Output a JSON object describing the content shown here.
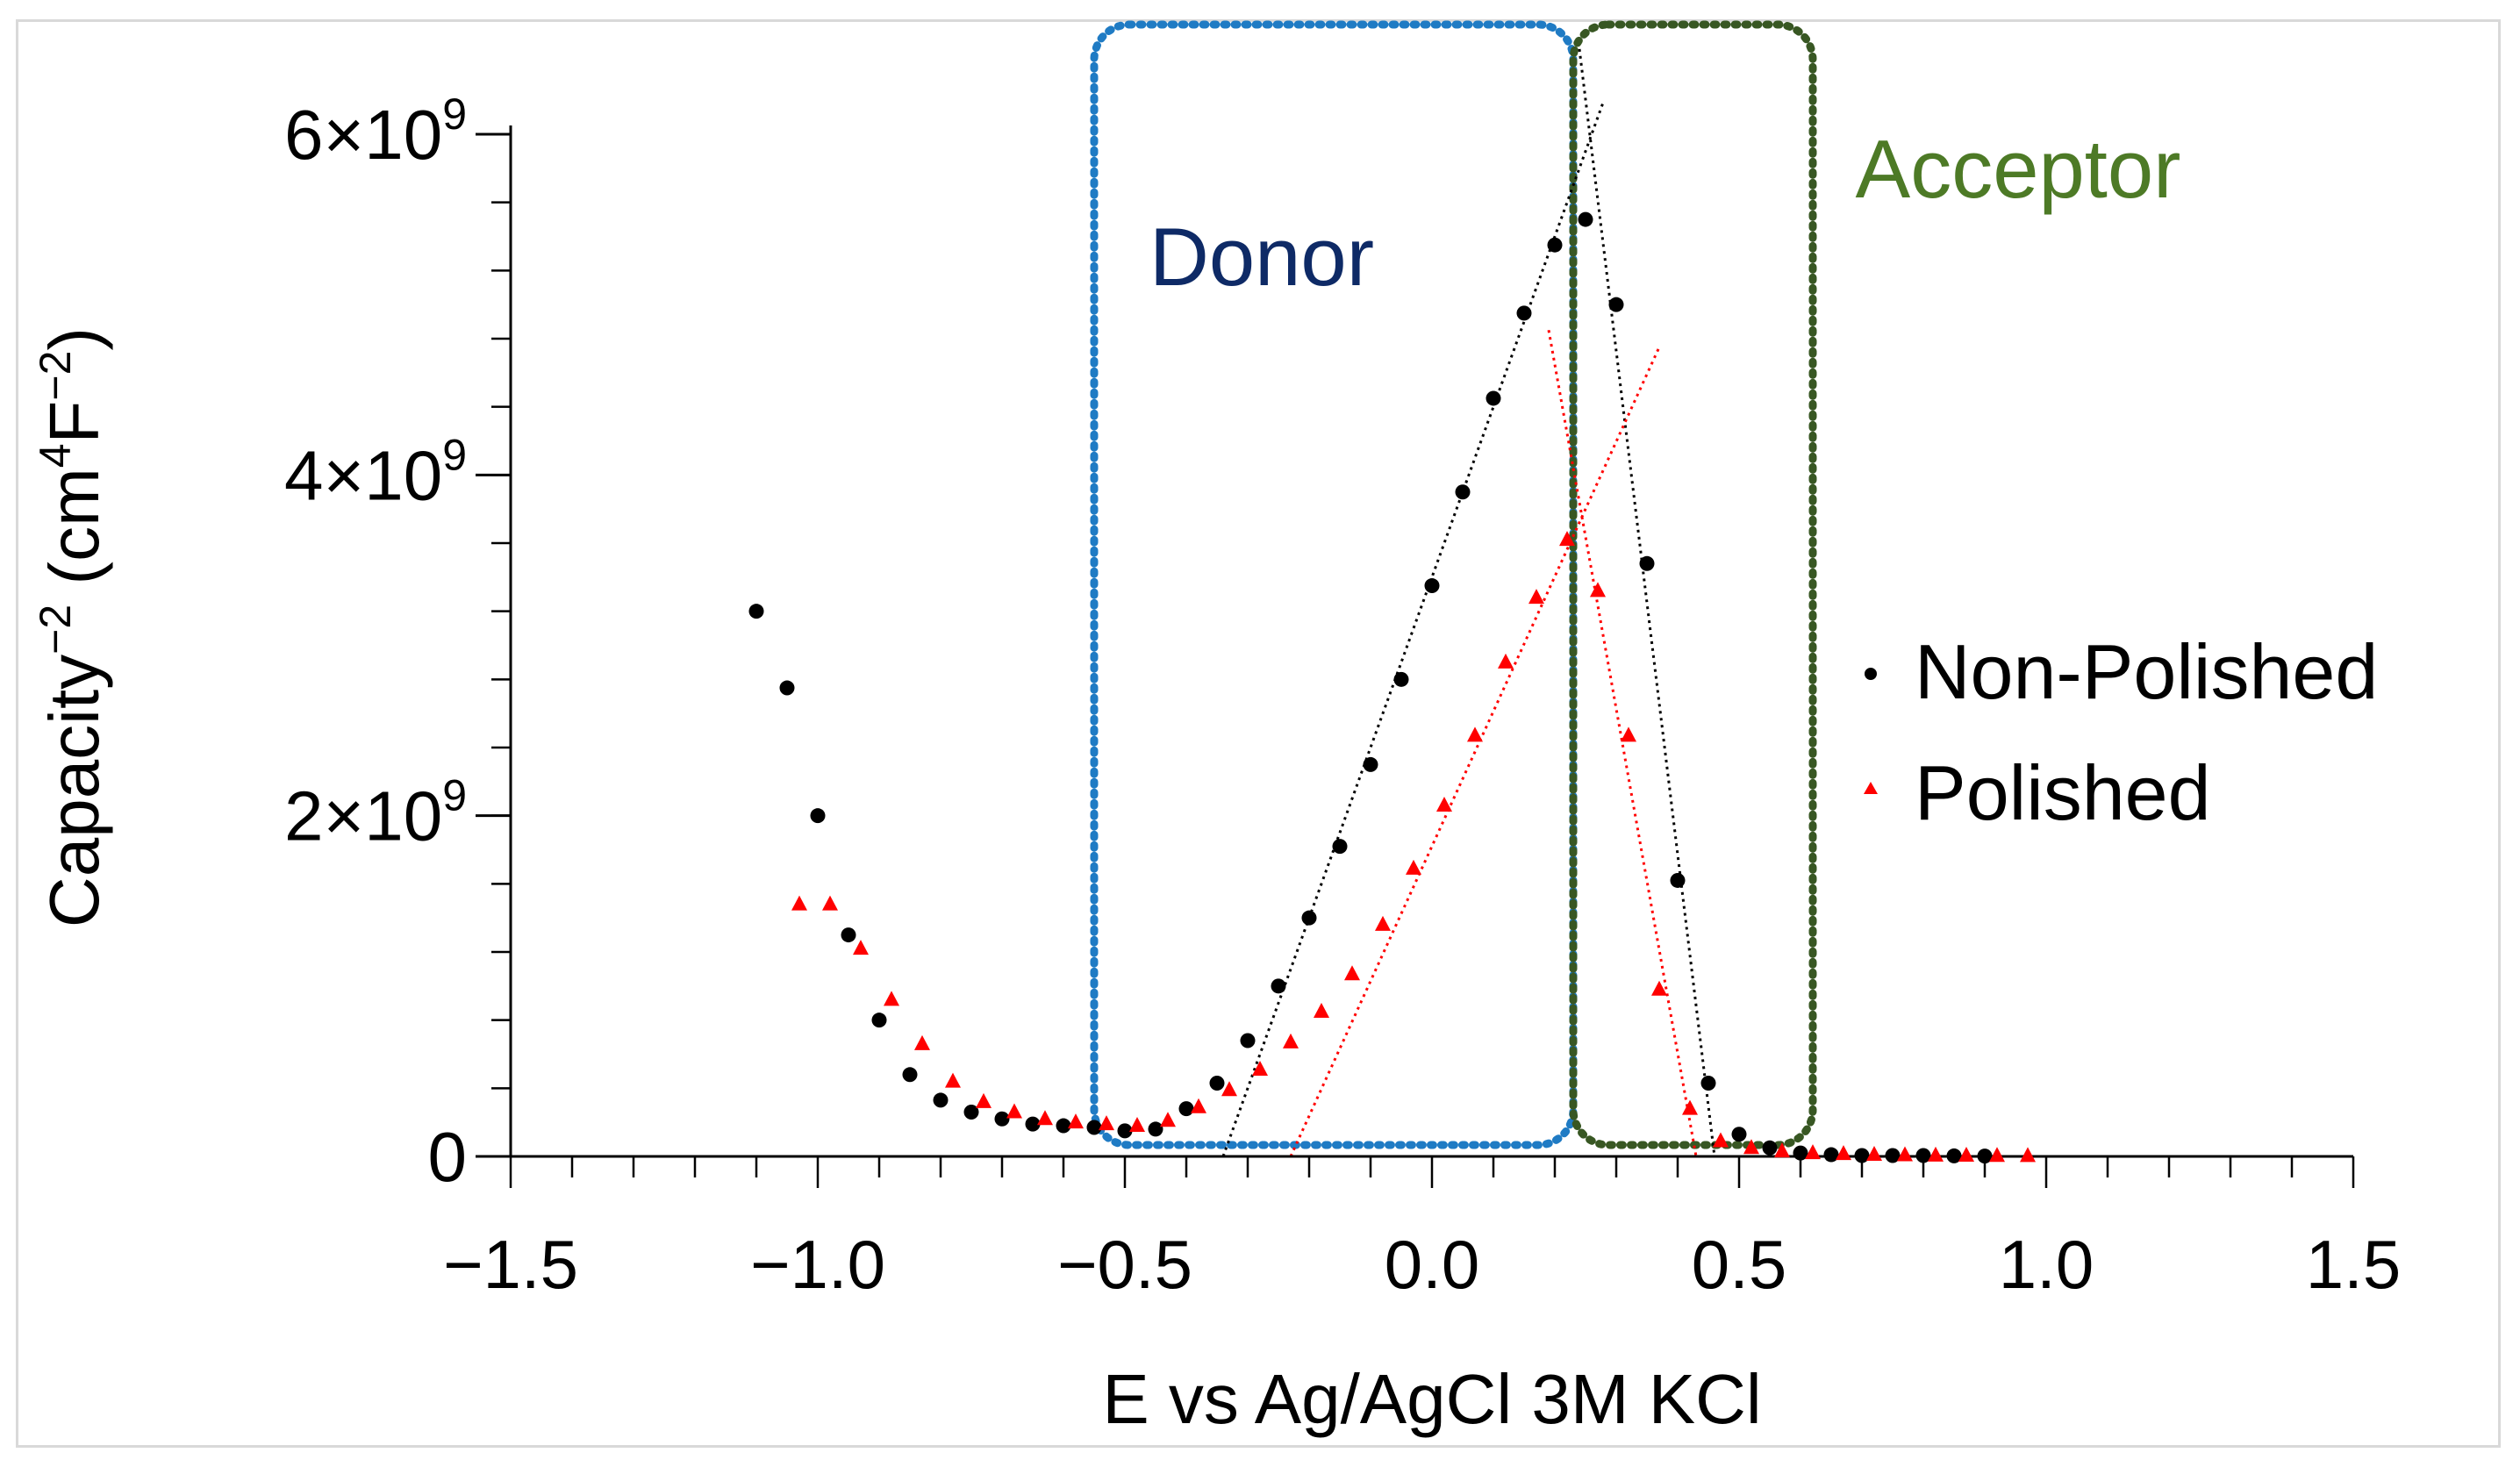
{
  "chart_data": {
    "type": "scatter",
    "title": "",
    "xlabel": "E vs Ag/AgCl 3M KCl",
    "ylabel_main": "Capacity",
    "ylabel_sup": "−2",
    "ylabel_unit_open": " (cm",
    "ylabel_unit_sup1": "4",
    "ylabel_unit_mid": "F",
    "ylabel_unit_sup2": "−2",
    "ylabel_unit_close": ")",
    "xlim": [
      -1.5,
      1.5
    ],
    "ylim": [
      0,
      6000000000
    ],
    "x_ticks": [
      {
        "value": -1.5,
        "label": "−1.5"
      },
      {
        "value": -1.0,
        "label": "−1.0"
      },
      {
        "value": -0.5,
        "label": "−0.5"
      },
      {
        "value": 0.0,
        "label": "0.0"
      },
      {
        "value": 0.5,
        "label": "0.5"
      },
      {
        "value": 1.0,
        "label": "1.0"
      },
      {
        "value": 1.5,
        "label": "1.5"
      }
    ],
    "x_minor_step": 0.1,
    "y_ticks": [
      {
        "value": 0,
        "label": "0",
        "base": "0",
        "exp": ""
      },
      {
        "value": 2000000000,
        "label": "2×10⁹",
        "base": "2×10",
        "exp": "9"
      },
      {
        "value": 4000000000,
        "label": "4×10⁹",
        "base": "4×10",
        "exp": "9"
      },
      {
        "value": 6000000000,
        "label": "6×10⁹",
        "base": "6×10",
        "exp": "9"
      }
    ],
    "y_minor_step": 400000000,
    "series": [
      {
        "name": "Non-Polished",
        "marker": "circle",
        "color": "#000000",
        "points": [
          [
            -1.1,
            3200000000
          ],
          [
            -1.05,
            2750000000
          ],
          [
            -1.0,
            2000000000
          ],
          [
            -0.95,
            1300000000
          ],
          [
            -0.9,
            800000000
          ],
          [
            -0.85,
            480000000
          ],
          [
            -0.8,
            330000000
          ],
          [
            -0.75,
            260000000
          ],
          [
            -0.7,
            220000000
          ],
          [
            -0.65,
            190000000
          ],
          [
            -0.6,
            180000000
          ],
          [
            -0.55,
            170000000
          ],
          [
            -0.5,
            150000000
          ],
          [
            -0.45,
            160000000
          ],
          [
            -0.4,
            280000000
          ],
          [
            -0.35,
            430000000
          ],
          [
            -0.3,
            680000000
          ],
          [
            -0.25,
            1000000000
          ],
          [
            -0.2,
            1400000000
          ],
          [
            -0.15,
            1820000000
          ],
          [
            -0.1,
            2300000000
          ],
          [
            -0.05,
            2800000000
          ],
          [
            0.0,
            3350000000
          ],
          [
            0.05,
            3900000000
          ],
          [
            0.1,
            4450000000
          ],
          [
            0.15,
            4950000000
          ],
          [
            0.2,
            5350000000
          ],
          [
            0.25,
            5500000000
          ],
          [
            0.3,
            5000000000
          ],
          [
            0.35,
            3480000000
          ],
          [
            0.4,
            1620000000
          ],
          [
            0.45,
            430000000
          ],
          [
            0.5,
            130000000
          ],
          [
            0.55,
            50000000
          ],
          [
            0.6,
            20000000
          ],
          [
            0.65,
            10000000
          ],
          [
            0.7,
            5000000
          ],
          [
            0.75,
            5000000
          ],
          [
            0.8,
            5000000
          ],
          [
            0.85,
            3000000
          ],
          [
            0.9,
            2000000
          ]
        ],
        "fit_lines": [
          [
            [
              -0.34,
              0
            ],
            [
              0.28,
              6200000000
            ]
          ],
          [
            [
              0.24,
              6500000000
            ],
            [
              0.46,
              0
            ]
          ]
        ]
      },
      {
        "name": "Polished",
        "marker": "triangle",
        "color": "#ff0000",
        "points": [
          [
            -1.03,
            1480000000
          ],
          [
            -0.98,
            1480000000
          ],
          [
            -0.93,
            1220000000
          ],
          [
            -0.88,
            920000000
          ],
          [
            -0.83,
            660000000
          ],
          [
            -0.78,
            440000000
          ],
          [
            -0.73,
            320000000
          ],
          [
            -0.68,
            260000000
          ],
          [
            -0.63,
            220000000
          ],
          [
            -0.58,
            200000000
          ],
          [
            -0.53,
            190000000
          ],
          [
            -0.48,
            180000000
          ],
          [
            -0.43,
            210000000
          ],
          [
            -0.38,
            290000000
          ],
          [
            -0.33,
            390000000
          ],
          [
            -0.28,
            510000000
          ],
          [
            -0.23,
            670000000
          ],
          [
            -0.18,
            850000000
          ],
          [
            -0.13,
            1070000000
          ],
          [
            -0.08,
            1360000000
          ],
          [
            -0.03,
            1690000000
          ],
          [
            0.02,
            2060000000
          ],
          [
            0.07,
            2470000000
          ],
          [
            0.12,
            2900000000
          ],
          [
            0.17,
            3280000000
          ],
          [
            0.22,
            3620000000
          ],
          [
            0.27,
            3320000000
          ],
          [
            0.32,
            2470000000
          ],
          [
            0.37,
            980000000
          ],
          [
            0.42,
            280000000
          ],
          [
            0.47,
            90000000
          ],
          [
            0.52,
            50000000
          ],
          [
            0.57,
            30000000
          ],
          [
            0.62,
            20000000
          ],
          [
            0.67,
            15000000
          ],
          [
            0.72,
            10000000
          ],
          [
            0.77,
            8000000
          ],
          [
            0.82,
            6000000
          ],
          [
            0.87,
            5000000
          ],
          [
            0.92,
            4000000
          ],
          [
            0.97,
            3000000
          ]
        ],
        "fit_lines": [
          [
            [
              -0.23,
              0
            ],
            [
              0.37,
              4750000000
            ]
          ],
          [
            [
              0.19,
              4850000000
            ],
            [
              0.43,
              0
            ]
          ]
        ]
      }
    ],
    "regions": [
      {
        "label": "Donor",
        "color": "#1f7bc4",
        "label_color": "#0e2a66",
        "x_range": [
          -0.55,
          0.23
        ]
      },
      {
        "label": "Acceptor",
        "color": "#385723",
        "label_color": "#4d7a26",
        "x_range": [
          0.23,
          0.62
        ]
      }
    ],
    "legend": {
      "position": "right",
      "entries": [
        "Non-Polished",
        "Polished"
      ]
    }
  }
}
